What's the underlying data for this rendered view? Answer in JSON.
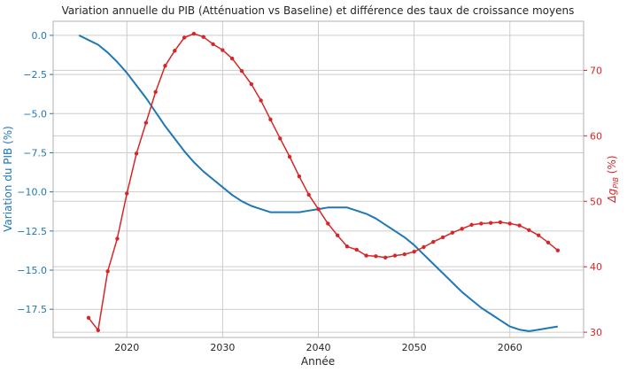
{
  "chart_data": {
    "type": "line",
    "title": "Variation annuelle du PIB (Atténuation vs Baseline) et différence des taux de croissance moyens",
    "xlabel": "Année",
    "ylabel_left": "Variation du PIB (%)",
    "ylabel_right_base": "Δg",
    "ylabel_right_sub": "PIB",
    "ylabel_right_unit": " (%)",
    "grid": true,
    "x_range": [
      2012.3,
      2067.7
    ],
    "x_ticks": [
      2020,
      2030,
      2040,
      2050,
      2060
    ],
    "x_tick_labels": [
      "2020",
      "2030",
      "2040",
      "2050",
      "2060"
    ],
    "y_left_range": [
      -19.3,
      0.9
    ],
    "y_left_ticks": [
      0,
      -2.5,
      -5,
      -7.5,
      -10,
      -12.5,
      -15,
      -17.5
    ],
    "y_left_tick_labels": [
      "0.0",
      "−2.5",
      "−5.0",
      "−7.5",
      "−10.0",
      "−12.5",
      "−15.0",
      "−17.5"
    ],
    "y_right_range": [
      29.2,
      77.5
    ],
    "y_right_ticks": [
      30,
      40,
      50,
      60,
      70
    ],
    "y_right_tick_labels": [
      "30",
      "40",
      "50",
      "60",
      "70"
    ],
    "colors": {
      "left": "#1f77b4",
      "right": "#d62728",
      "grid": "#cccccc",
      "spine": "#b0b0b0",
      "text": "#262626"
    },
    "series": [
      {
        "axis": "left",
        "marker": "none",
        "x": [
          2015,
          2016,
          2017,
          2018,
          2019,
          2020,
          2021,
          2022,
          2023,
          2024,
          2025,
          2026,
          2027,
          2028,
          2029,
          2030,
          2031,
          2032,
          2033,
          2034,
          2035,
          2036,
          2037,
          2038,
          2039,
          2040,
          2041,
          2042,
          2043,
          2044,
          2045,
          2046,
          2047,
          2048,
          2049,
          2050,
          2051,
          2052,
          2053,
          2054,
          2055,
          2056,
          2057,
          2058,
          2059,
          2060,
          2061,
          2062,
          2063,
          2064,
          2065
        ],
        "values": [
          0.0,
          -0.3,
          -0.6,
          -1.1,
          -1.7,
          -2.4,
          -3.2,
          -4.0,
          -4.9,
          -5.8,
          -6.6,
          -7.4,
          -8.1,
          -8.7,
          -9.2,
          -9.7,
          -10.2,
          -10.6,
          -10.9,
          -11.1,
          -11.3,
          -11.3,
          -11.3,
          -11.3,
          -11.2,
          -11.1,
          -11.0,
          -11.0,
          -11.0,
          -11.2,
          -11.4,
          -11.7,
          -12.1,
          -12.5,
          -12.9,
          -13.4,
          -14.0,
          -14.6,
          -15.2,
          -15.8,
          -16.4,
          -16.9,
          -17.4,
          -17.8,
          -18.2,
          -18.6,
          -18.8,
          -18.9,
          -18.8,
          -18.7,
          -18.6
        ]
      },
      {
        "axis": "right",
        "marker": "circle",
        "x": [
          2016,
          2017,
          2018,
          2019,
          2020,
          2021,
          2022,
          2023,
          2024,
          2025,
          2026,
          2027,
          2028,
          2029,
          2030,
          2031,
          2032,
          2033,
          2034,
          2035,
          2036,
          2037,
          2038,
          2039,
          2040,
          2041,
          2042,
          2043,
          2044,
          2045,
          2046,
          2047,
          2048,
          2049,
          2050,
          2051,
          2052,
          2053,
          2054,
          2055,
          2056,
          2057,
          2058,
          2059,
          2060,
          2061,
          2062,
          2063,
          2064,
          2065
        ],
        "values": [
          32.2,
          30.3,
          39.3,
          44.3,
          51.2,
          57.3,
          62.0,
          66.7,
          70.7,
          73.0,
          75.0,
          75.6,
          75.1,
          74.0,
          73.1,
          71.8,
          69.9,
          67.9,
          65.4,
          62.5,
          59.6,
          56.8,
          53.8,
          51.0,
          48.8,
          46.6,
          44.8,
          43.1,
          42.6,
          41.7,
          41.6,
          41.4,
          41.7,
          41.9,
          42.3,
          43.0,
          43.8,
          44.5,
          45.2,
          45.8,
          46.4,
          46.6,
          46.7,
          46.8,
          46.6,
          46.3,
          45.6,
          44.8,
          43.7,
          42.5
        ]
      }
    ]
  }
}
